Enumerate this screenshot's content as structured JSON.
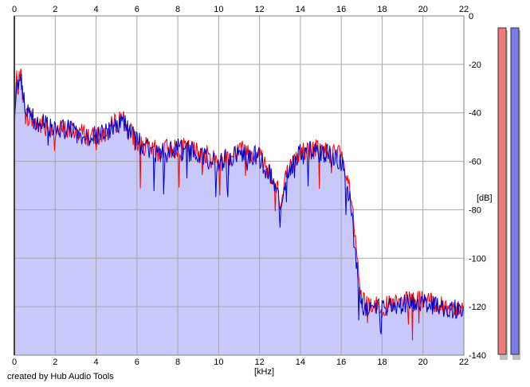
{
  "chart_data": {
    "type": "area",
    "xlabel": "[kHz]",
    "ylabel": "[dB]",
    "xlim": [
      0,
      22
    ],
    "ylim": [
      -140,
      0
    ],
    "x_ticks": [
      "0",
      "2",
      "4",
      "6",
      "8",
      "10",
      "12",
      "14",
      "16",
      "18",
      "20",
      "22"
    ],
    "y_ticks": [
      "0",
      "-20",
      "-40",
      "-60",
      "-80",
      "-100",
      "-120",
      "-140"
    ],
    "grid": true,
    "series": [
      {
        "color": "#ff0000",
        "x": [
          0,
          0.1,
          0.2,
          0.3,
          0.5,
          1,
          2,
          3,
          4,
          5,
          5.3,
          5.5,
          6,
          7,
          8,
          9,
          10,
          11,
          12,
          12.9,
          13,
          13.3,
          14,
          15,
          16,
          16.5,
          16.7,
          17,
          18,
          19,
          20,
          21,
          22
        ],
        "y": [
          -48,
          -25,
          -30,
          -22,
          -40,
          -44,
          -47,
          -47,
          -51,
          -44,
          -41,
          -45,
          -53,
          -56,
          -54,
          -56,
          -60,
          -55,
          -57,
          -70,
          -81,
          -66,
          -56,
          -55,
          -58,
          -75,
          -95,
          -118,
          -120,
          -118,
          -117,
          -120,
          -120
        ]
      },
      {
        "color": "#0000cc",
        "x": [
          0,
          0.1,
          0.2,
          0.3,
          0.5,
          1,
          2,
          3,
          4,
          5,
          5.3,
          5.5,
          6,
          7,
          8,
          9,
          10,
          11,
          12,
          12.9,
          13,
          13.3,
          14,
          15,
          16,
          16.5,
          16.7,
          17,
          18,
          19,
          20,
          21,
          22
        ],
        "y": [
          -47,
          -26,
          -28,
          -24,
          -38,
          -43,
          -46,
          -48,
          -50,
          -45,
          -42,
          -46,
          -52,
          -57,
          -55,
          -57,
          -61,
          -56,
          -58,
          -72,
          -84,
          -65,
          -57,
          -56,
          -60,
          -78,
          -100,
          -120,
          -121,
          -119,
          -118,
          -121,
          -121
        ]
      }
    ],
    "meters": [
      {
        "color": "#ef7b7b"
      },
      {
        "color": "#7b7be8"
      }
    ]
  },
  "credit": "created by Hub Audio Tools"
}
